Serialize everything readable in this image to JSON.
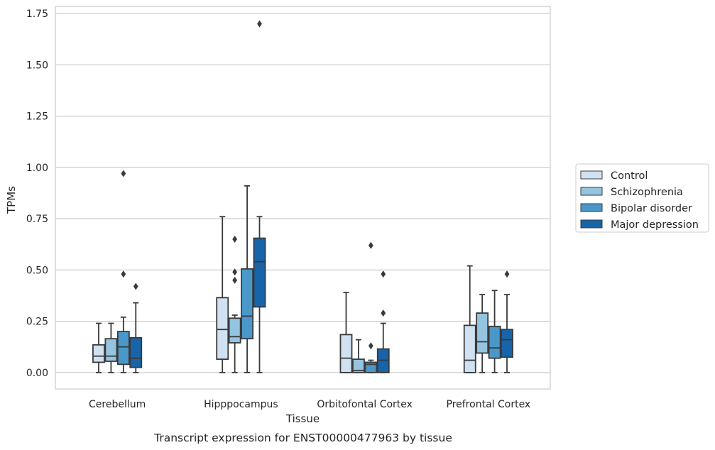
{
  "chart_data": {
    "type": "box",
    "caption": "Transcript expression for ENST00000477963 by tissue",
    "xlabel": "Tissue",
    "ylabel": "TPMs",
    "ylim": [
      -0.08,
      1.785
    ],
    "yticks": [
      0.0,
      0.25,
      0.5,
      0.75,
      1.0,
      1.25,
      1.5,
      1.75
    ],
    "ytick_labels": [
      "0.00",
      "0.25",
      "0.50",
      "0.75",
      "1.00",
      "1.25",
      "1.50",
      "1.75"
    ],
    "grid": "horizontal",
    "legend_position": "right",
    "categories": [
      "Cerebellum",
      "Hipppocampus",
      "Orbitofontal Cortex",
      "Prefrontal Cortex"
    ],
    "series": [
      {
        "name": "Control",
        "color": "#d0e1f2",
        "boxes": [
          {
            "whislo": 0.0,
            "q1": 0.05,
            "med": 0.08,
            "q3": 0.135,
            "whishi": 0.24,
            "fliers": []
          },
          {
            "whislo": 0.0,
            "q1": 0.065,
            "med": 0.21,
            "q3": 0.365,
            "whishi": 0.76,
            "fliers": []
          },
          {
            "whislo": 0.0,
            "q1": 0.0,
            "med": 0.07,
            "q3": 0.185,
            "whishi": 0.39,
            "fliers": []
          },
          {
            "whislo": 0.0,
            "q1": 0.0,
            "med": 0.06,
            "q3": 0.23,
            "whishi": 0.52,
            "fliers": []
          }
        ]
      },
      {
        "name": "Schizophrenia",
        "color": "#94c4df",
        "boxes": [
          {
            "whislo": 0.0,
            "q1": 0.055,
            "med": 0.08,
            "q3": 0.165,
            "whishi": 0.24,
            "fliers": []
          },
          {
            "whislo": 0.0,
            "q1": 0.145,
            "med": 0.175,
            "q3": 0.265,
            "whishi": 0.28,
            "fliers": [
              0.45,
              0.49,
              0.65
            ]
          },
          {
            "whislo": 0.0,
            "q1": 0.0,
            "med": 0.01,
            "q3": 0.065,
            "whishi": 0.16,
            "fliers": []
          },
          {
            "whislo": 0.0,
            "q1": 0.095,
            "med": 0.15,
            "q3": 0.29,
            "whishi": 0.38,
            "fliers": []
          }
        ]
      },
      {
        "name": "Bipolar disorder",
        "color": "#4a98c9",
        "boxes": [
          {
            "whislo": 0.0,
            "q1": 0.04,
            "med": 0.125,
            "q3": 0.2,
            "whishi": 0.27,
            "fliers": [
              0.48,
              0.97
            ]
          },
          {
            "whislo": 0.0,
            "q1": 0.165,
            "med": 0.275,
            "q3": 0.505,
            "whishi": 0.91,
            "fliers": []
          },
          {
            "whislo": 0.0,
            "q1": 0.0,
            "med": 0.04,
            "q3": 0.05,
            "whishi": 0.06,
            "fliers": [
              0.13,
              0.62
            ]
          },
          {
            "whislo": 0.0,
            "q1": 0.07,
            "med": 0.12,
            "q3": 0.225,
            "whishi": 0.4,
            "fliers": []
          }
        ]
      },
      {
        "name": "Major depression",
        "color": "#1764ab",
        "boxes": [
          {
            "whislo": 0.0,
            "q1": 0.025,
            "med": 0.07,
            "q3": 0.17,
            "whishi": 0.34,
            "fliers": [
              0.42
            ]
          },
          {
            "whislo": 0.0,
            "q1": 0.32,
            "med": 0.54,
            "q3": 0.655,
            "whishi": 0.76,
            "fliers": [
              1.7
            ]
          },
          {
            "whislo": 0.0,
            "q1": 0.0,
            "med": 0.06,
            "q3": 0.115,
            "whishi": 0.24,
            "fliers": [
              0.29,
              0.48
            ]
          },
          {
            "whislo": 0.0,
            "q1": 0.075,
            "med": 0.16,
            "q3": 0.21,
            "whishi": 0.38,
            "fliers": [
              0.48
            ]
          }
        ]
      }
    ]
  }
}
